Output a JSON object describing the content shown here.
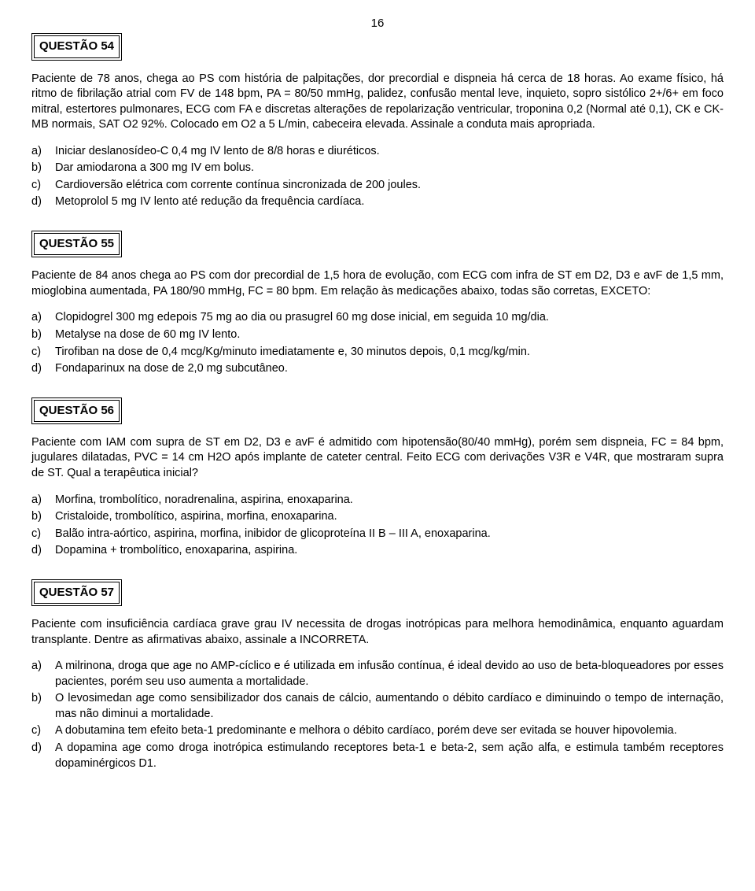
{
  "page_number": "16",
  "questions": [
    {
      "label": "QUESTÃO  54",
      "text": "Paciente de 78 anos, chega ao PS com história de palpitações, dor precordial e dispneia há cerca de 18 horas. Ao exame físico, há ritmo de fibrilação atrial com FV de 148 bpm, PA = 80/50 mmHg, palidez, confusão mental leve, inquieto, sopro sistólico 2+/6+ em foco mitral, estertores pulmonares, ECG com FA e discretas alterações de repolarização ventricular, troponina 0,2 (Normal até 0,1), CK e CK-MB  normais, SAT O2 92%. Colocado em O2 a 5 L/min, cabeceira elevada. Assinale a conduta mais apropriada.",
      "options": [
        {
          "l": "a)",
          "t": "Iniciar deslanosídeo-C 0,4 mg IV lento de 8/8 horas e diuréticos."
        },
        {
          "l": "b)",
          "t": "Dar amiodarona a 300 mg IV em bolus."
        },
        {
          "l": "c)",
          "t": "Cardioversão elétrica com corrente contínua sincronizada de 200 joules."
        },
        {
          "l": "d)",
          "t": "Metoprolol 5 mg IV lento até redução da frequência cardíaca."
        }
      ]
    },
    {
      "label": "QUESTÃO  55",
      "text": "Paciente de 84 anos chega ao PS com dor precordial de 1,5 hora de evolução, com ECG com infra de ST em D2, D3 e avF de 1,5 mm, mioglobina aumentada, PA 180/90 mmHg, FC = 80 bpm. Em relação às medicações abaixo, todas são corretas, EXCETO:",
      "options": [
        {
          "l": "a)",
          "t": "Clopidogrel 300 mg edepois 75 mg  ao dia ou prasugrel 60 mg dose inicial, em seguida 10 mg/dia."
        },
        {
          "l": "b)",
          "t": "Metalyse na dose de 60 mg IV lento."
        },
        {
          "l": "c)",
          "t": "Tirofiban na dose de 0,4 mcg/Kg/minuto imediatamente e, 30 minutos depois, 0,1 mcg/kg/min."
        },
        {
          "l": "d)",
          "t": "Fondaparinux na dose de 2,0 mg subcutâneo."
        }
      ]
    },
    {
      "label": "QUESTÃO  56",
      "text": "Paciente com IAM com supra de ST em D2, D3 e avF é admitido com hipotensão(80/40 mmHg), porém sem dispneia, FC = 84 bpm, jugulares dilatadas, PVC = 14 cm H2O após implante de cateter central. Feito ECG com derivações V3R e V4R, que mostraram supra de ST. Qual a terapêutica inicial?",
      "options": [
        {
          "l": "a)",
          "t": "Morfina, trombolítico, noradrenalina, aspirina, enoxaparina."
        },
        {
          "l": "b)",
          "t": "Cristaloide, trombolítico, aspirina, morfina, enoxaparina."
        },
        {
          "l": "c)",
          "t": "Balão intra-aórtico, aspirina, morfina, inibidor de glicoproteína II B – III A, enoxaparina."
        },
        {
          "l": "d)",
          "t": "Dopamina + trombolítico, enoxaparina, aspirina."
        }
      ]
    },
    {
      "label": "QUESTÃO  57",
      "text": "Paciente com insuficiência cardíaca grave grau IV necessita de drogas inotrópicas para melhora hemodinâmica, enquanto aguardam transplante. Dentre as afirmativas abaixo, assinale a INCORRETA.",
      "options": [
        {
          "l": "a)",
          "t": "A milrinona, droga que age no AMP-cíclico e é utilizada em infusão contínua, é ideal devido ao uso de beta-bloqueadores por esses pacientes, porém seu uso aumenta a mortalidade."
        },
        {
          "l": "b)",
          "t": "O levosimedan age como sensibilizador dos canais de cálcio, aumentando o débito cardíaco e diminuindo o tempo de internação, mas não diminui a mortalidade."
        },
        {
          "l": "c)",
          "t": "A dobutamina tem efeito beta-1 predominante e melhora o débito cardíaco, porém deve ser evitada se houver hipovolemia."
        },
        {
          "l": "d)",
          "t": "A dopamina age como droga inotrópica estimulando receptores beta-1 e beta-2, sem ação alfa, e estimula também receptores dopaminérgicos D1."
        }
      ]
    }
  ]
}
